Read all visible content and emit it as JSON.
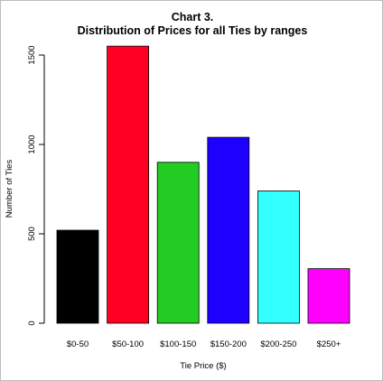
{
  "chart_data": {
    "type": "bar",
    "title": "Chart 3.",
    "subtitle": "Distribution of Prices for all Ties by ranges",
    "xlabel": "Tie Price ($)",
    "ylabel": "Number of Ties",
    "categories": [
      "$0-50",
      "$50-100",
      "$100-150",
      "$150-200",
      "$200-250",
      "$250+"
    ],
    "values": [
      520,
      1550,
      900,
      1040,
      740,
      305
    ],
    "colors": [
      "#000000",
      "#ff0022",
      "#22cc22",
      "#1e00ff",
      "#33ffff",
      "#ff00ff"
    ],
    "ylim": [
      0,
      1500
    ],
    "yticks": [
      0,
      500,
      1000,
      1500
    ],
    "grid": false,
    "legend": "none"
  }
}
